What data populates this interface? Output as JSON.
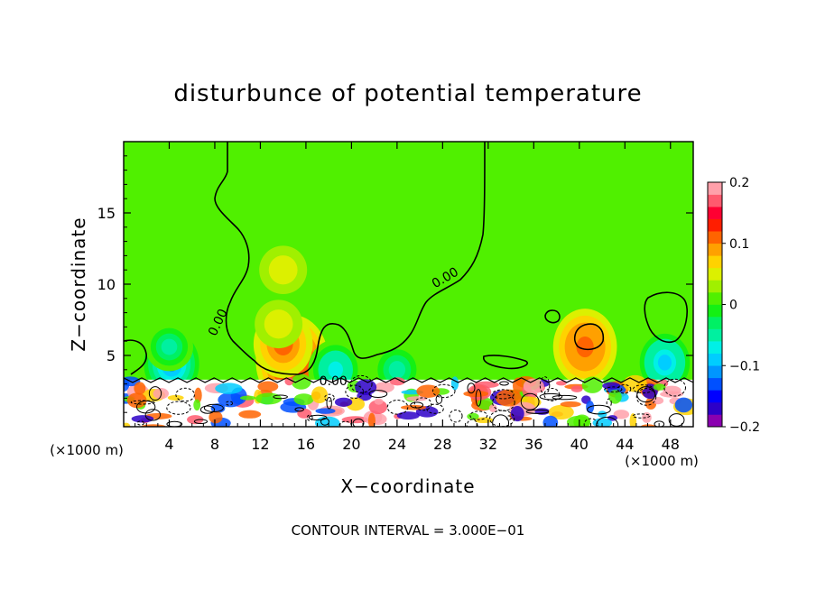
{
  "chart_data": {
    "type": "heatmap",
    "title": "disturbunce of potential temperature",
    "xlabel": "X−coordinate",
    "ylabel": "Z−coordinate",
    "x_unit_left": "(×1000 m)",
    "x_unit_right": "(×1000 m)",
    "footer": "CONTOUR INTERVAL = 3.000E−01",
    "xlim": [
      0,
      50
    ],
    "ylim": [
      0,
      20
    ],
    "x_ticks": [
      4,
      8,
      12,
      16,
      20,
      24,
      28,
      32,
      36,
      40,
      44,
      48
    ],
    "x_tick_labels": [
      "4",
      "8",
      "12",
      "16",
      "20",
      "24",
      "28",
      "32",
      "36",
      "40",
      "44",
      "48"
    ],
    "y_ticks": [
      5,
      10,
      15
    ],
    "y_tick_labels": [
      "5",
      "10",
      "15"
    ],
    "contour_labels": [
      {
        "text": "0.00",
        "x": 8.6,
        "y": 7.2,
        "angle": -65
      },
      {
        "text": "0.00",
        "x": 28.4,
        "y": 10.2,
        "angle": -30
      },
      {
        "text": "0.00",
        "x": 18.4,
        "y": 2.9,
        "angle": 0
      }
    ],
    "colorbar": {
      "min": -0.2,
      "max": 0.2,
      "tick_values": [
        0.2,
        0.1,
        0,
        -0.1,
        -0.2
      ],
      "tick_labels": [
        "0.2",
        "0.1",
        "0",
        "−0.1",
        "−0.2"
      ],
      "colors": [
        "#8a00b0",
        "#2d00c8",
        "#0000ff",
        "#0050ff",
        "#0096ff",
        "#00cdff",
        "#00f0e6",
        "#00f0a0",
        "#00f064",
        "#14f014",
        "#50f000",
        "#a0f000",
        "#dcf000",
        "#ffd200",
        "#ffa000",
        "#ff6400",
        "#ff1e00",
        "#ff0032",
        "#ff5a6e",
        "#ffa0aa"
      ]
    },
    "background_value": 0.02,
    "anomalies": [
      {
        "x": 14.8,
        "y": 4.6,
        "value": 0.16,
        "note": "warm core"
      },
      {
        "x": 14.0,
        "y": 5.8,
        "value": 0.1
      },
      {
        "x": 13.6,
        "y": 7.2,
        "value": 0.05
      },
      {
        "x": 14.0,
        "y": 11.0,
        "value": 0.05
      },
      {
        "x": 4.2,
        "y": 4.4,
        "value": -0.12
      },
      {
        "x": 4.0,
        "y": 5.6,
        "value": -0.05
      },
      {
        "x": 18.6,
        "y": 4.0,
        "value": -0.08
      },
      {
        "x": 24.0,
        "y": 4.0,
        "value": -0.06
      },
      {
        "x": 40.5,
        "y": 5.6,
        "value": 0.12
      },
      {
        "x": 47.5,
        "y": 4.5,
        "value": -0.1
      }
    ]
  }
}
